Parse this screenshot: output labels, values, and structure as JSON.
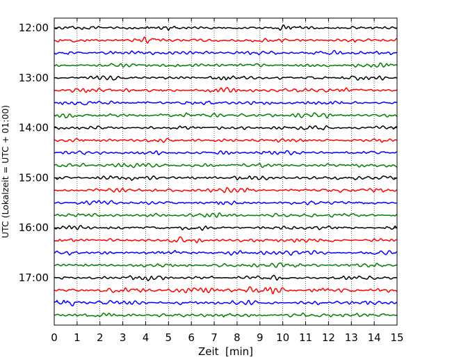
{
  "chart_data": {
    "type": "line",
    "title": "",
    "xlabel": "Zeit  [min]",
    "ylabel": "UTC (Lokalzeit = UTC + 01:00)",
    "xlim": [
      0,
      15
    ],
    "x_ticks": [
      "0",
      "1",
      "2",
      "3",
      "4",
      "5",
      "6",
      "7",
      "8",
      "9",
      "10",
      "11",
      "12",
      "13",
      "14",
      "15"
    ],
    "y_ticks": [
      "12:00",
      "13:00",
      "14:00",
      "15:00",
      "16:00",
      "17:00"
    ],
    "grid": "vertical dotted lines at each minute",
    "trace_start": "12:00",
    "trace_interval_minutes": 15,
    "trace_colors_cycle": [
      "#000000",
      "#ff0000",
      "#0000ff",
      "#008000"
    ],
    "traces": [
      {
        "start": "12:00",
        "color": "#000000"
      },
      {
        "start": "12:15",
        "color": "#ff0000"
      },
      {
        "start": "12:30",
        "color": "#0000ff"
      },
      {
        "start": "12:45",
        "color": "#008000"
      },
      {
        "start": "13:00",
        "color": "#000000"
      },
      {
        "start": "13:15",
        "color": "#ff0000"
      },
      {
        "start": "13:30",
        "color": "#0000ff"
      },
      {
        "start": "13:45",
        "color": "#008000"
      },
      {
        "start": "14:00",
        "color": "#000000"
      },
      {
        "start": "14:15",
        "color": "#ff0000"
      },
      {
        "start": "14:30",
        "color": "#0000ff"
      },
      {
        "start": "14:45",
        "color": "#008000"
      },
      {
        "start": "15:00",
        "color": "#000000"
      },
      {
        "start": "15:15",
        "color": "#ff0000"
      },
      {
        "start": "15:30",
        "color": "#0000ff"
      },
      {
        "start": "15:45",
        "color": "#008000"
      },
      {
        "start": "16:00",
        "color": "#000000"
      },
      {
        "start": "16:15",
        "color": "#ff0000"
      },
      {
        "start": "16:30",
        "color": "#0000ff"
      },
      {
        "start": "16:45",
        "color": "#008000"
      },
      {
        "start": "17:00",
        "color": "#000000"
      },
      {
        "start": "17:15",
        "color": "#ff0000"
      },
      {
        "start": "17:30",
        "color": "#0000ff"
      },
      {
        "start": "17:45",
        "color": "#008000"
      }
    ]
  }
}
